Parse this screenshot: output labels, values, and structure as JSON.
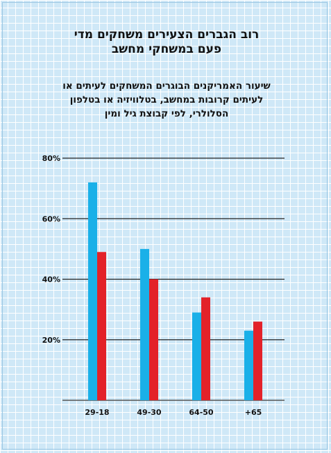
{
  "header": {
    "title_line1": "רוב הגברים הצעירים משחקים מדי",
    "title_line2": "פעם במשחקי מחשב",
    "subtitle_line1": "שיעור האמריקנים הבוגרים המשחקים לעיתים או",
    "subtitle_line2": "לעיתים קרובות במחשב, בטלוויזיה או בטלפון",
    "subtitle_line3": "הסלולרי, לפי קבוצת גיל ומין"
  },
  "chart_data": {
    "type": "bar",
    "categories": [
      "29-18",
      "49-30",
      "64-50",
      "+65"
    ],
    "series": [
      {
        "values": [
          72,
          50,
          29,
          23
        ]
      },
      {
        "values": [
          49,
          40,
          34,
          26
        ]
      }
    ],
    "yticks": [
      "20%",
      "40%",
      "60%",
      "80%"
    ],
    "ylim": [
      0,
      80
    ],
    "colors": [
      "#1ab0e8",
      "#e32229"
    ],
    "grid": true
  }
}
